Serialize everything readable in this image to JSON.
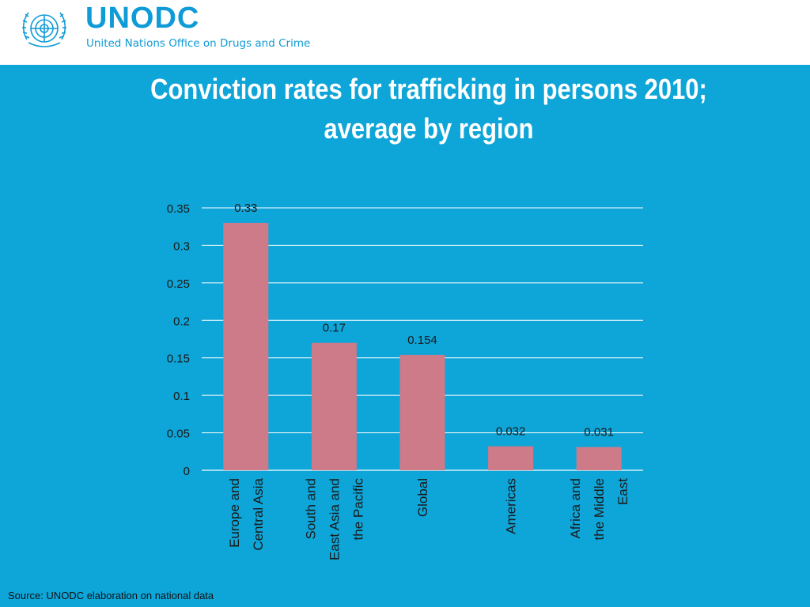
{
  "header": {
    "org_name": "UNODC",
    "org_full_name": "United Nations Office on Drugs and Crime",
    "logo_icon": "un-emblem-icon",
    "brand_color": "#0f9bd7"
  },
  "slide": {
    "title_line1": "Conviction rates for trafficking in persons 2010;",
    "title_line2": "average by region",
    "background_color": "#0ea5d8",
    "source": "Source: UNODC elaboration on national data"
  },
  "chart_data": {
    "type": "bar",
    "categories": [
      [
        "Europe and",
        "Central Asia"
      ],
      [
        "South and",
        "East Asia and",
        "the Pacific"
      ],
      [
        "Global"
      ],
      [
        "Americas"
      ],
      [
        "Africa and",
        "the Middle",
        "East"
      ]
    ],
    "values": [
      0.33,
      0.17,
      0.154,
      0.032,
      0.031
    ],
    "data_labels": [
      "0.33",
      "0.17",
      "0.154",
      "0.032",
      "0.031"
    ],
    "yticks": [
      "0",
      "0.05",
      "0.1",
      "0.15",
      "0.2",
      "0.25",
      "0.3",
      "0.35"
    ],
    "ylim": [
      0,
      0.35
    ],
    "grid": true,
    "bar_color": "#cd7b89",
    "title": "",
    "xlabel": "",
    "ylabel": ""
  }
}
